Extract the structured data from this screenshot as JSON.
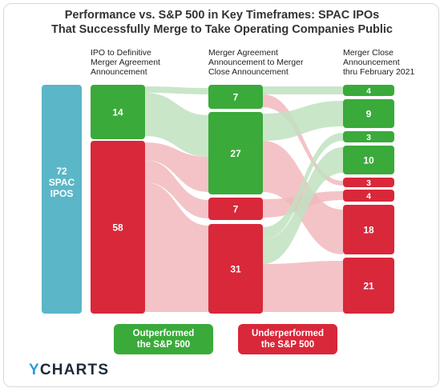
{
  "title_line1": "Performance vs. S&P 500 in Key Timeframes: SPAC IPOs",
  "title_line2": "That Successfully Merge to Take Operating Companies Public",
  "columns": {
    "col1": [
      "IPO to Definitive",
      "Merger Agreement",
      "Announcement"
    ],
    "col2": [
      "Merger Agreement",
      "Announcement to Merger",
      "Close Announcement"
    ],
    "col3": [
      "Merger Close",
      "Announcement",
      "thru February 2021"
    ]
  },
  "source": {
    "lines": [
      "72",
      "SPAC",
      "IPOS"
    ]
  },
  "stage1": [
    {
      "label": "14",
      "status": "outperformed"
    },
    {
      "label": "58",
      "status": "underperformed"
    }
  ],
  "stage2": [
    {
      "label": "7",
      "status": "outperformed"
    },
    {
      "label": "27",
      "status": "outperformed"
    },
    {
      "label": "7",
      "status": "underperformed"
    },
    {
      "label": "31",
      "status": "underperformed"
    }
  ],
  "stage3": [
    {
      "label": "4",
      "status": "outperformed"
    },
    {
      "label": "9",
      "status": "outperformed"
    },
    {
      "label": "3",
      "status": "outperformed"
    },
    {
      "label": "10",
      "status": "outperformed"
    },
    {
      "label": "3",
      "status": "underperformed"
    },
    {
      "label": "4",
      "status": "underperformed"
    },
    {
      "label": "18",
      "status": "underperformed"
    },
    {
      "label": "21",
      "status": "underperformed"
    }
  ],
  "legend": {
    "green": [
      "Outperformed",
      "the S&P 500"
    ],
    "red": [
      "Underperformed",
      "the S&P 500"
    ]
  },
  "logo": {
    "mark": "Y",
    "rest": "CHARTS"
  },
  "colors": {
    "source": "#5bb6c7",
    "green": "#3aaa3a",
    "red": "#d8283a",
    "green_flow": "#bfe2bf",
    "red_flow": "#f1b9bd"
  }
}
